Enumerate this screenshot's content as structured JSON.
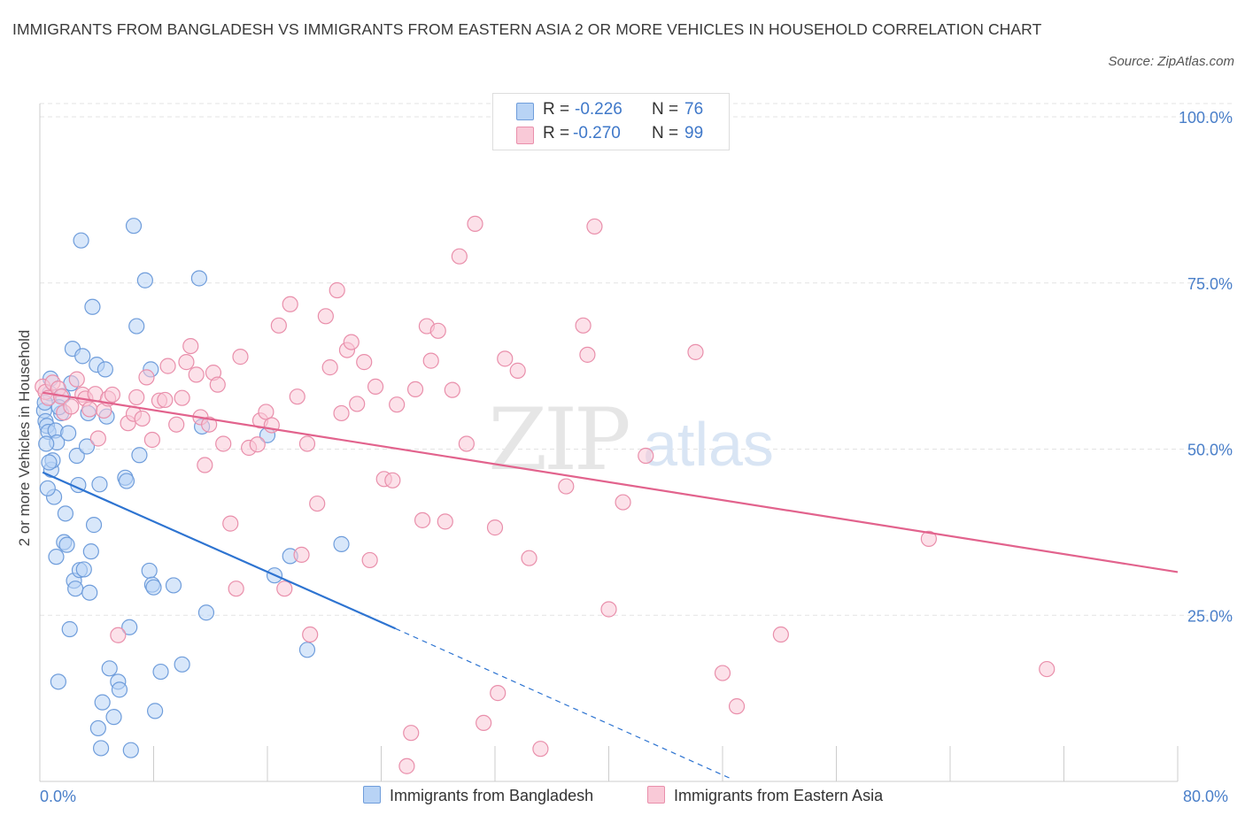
{
  "title": "IMMIGRANTS FROM BANGLADESH VS IMMIGRANTS FROM EASTERN ASIA 2 OR MORE VEHICLES IN HOUSEHOLD CORRELATION CHART",
  "source": "Source: ZipAtlas.com",
  "watermark": {
    "zip": "ZIP",
    "atlas": "atlas"
  },
  "colors": {
    "blue_fill": "#b8d3f5",
    "blue_stroke": "#6f9ddb",
    "blue_line": "#2e74d1",
    "pink_fill": "#f9c9d7",
    "pink_stroke": "#e98fab",
    "pink_line": "#e2638d",
    "tick_text": "#4a7fc9",
    "grid": "#e3e3e3"
  },
  "legend_top": {
    "rows": [
      {
        "r_label": "R =",
        "r_value": "-0.226",
        "n_label": "N =",
        "n_value": "76"
      },
      {
        "r_label": "R =",
        "r_value": "-0.270",
        "n_label": "N =",
        "n_value": "99"
      }
    ]
  },
  "chart_data": {
    "type": "scatter",
    "title": "IMMIGRANTS FROM BANGLADESH VS IMMIGRANTS FROM EASTERN ASIA 2 OR MORE VEHICLES IN HOUSEHOLD CORRELATION CHART",
    "xlabel": "",
    "ylabel": "2 or more Vehicles in Household",
    "xlim": [
      0,
      80
    ],
    "ylim": [
      0,
      100
    ],
    "x_tick_labels": [
      "0.0%",
      "80.0%"
    ],
    "y_ticks": [
      {
        "value": 100,
        "label": "100.0%"
      },
      {
        "value": 75,
        "label": "75.0%"
      },
      {
        "value": 50,
        "label": "50.0%"
      },
      {
        "value": 25,
        "label": "25.0%"
      }
    ],
    "grid": true,
    "legend_position": "bottom",
    "series": [
      {
        "name": "Immigrants from Bangladesh",
        "color": "#b8d3f5",
        "R": -0.226,
        "N": 76,
        "trend": {
          "x0": 0.2,
          "y0": 46.5,
          "x1": 25.0,
          "y1": 23.0,
          "dash_x1": 48.5,
          "dash_y1": 0.5
        },
        "points": [
          [
            0.3,
            55.8
          ],
          [
            0.4,
            54.2
          ],
          [
            0.5,
            53.5
          ],
          [
            0.6,
            52.6
          ],
          [
            0.7,
            58.4
          ],
          [
            0.8,
            46.9
          ],
          [
            0.9,
            48.3
          ],
          [
            1.0,
            42.8
          ],
          [
            1.1,
            52.8
          ],
          [
            1.2,
            51.0
          ],
          [
            1.3,
            15.0
          ],
          [
            1.5,
            55.4
          ],
          [
            1.6,
            58.0
          ],
          [
            1.7,
            36.0
          ],
          [
            1.8,
            40.3
          ],
          [
            1.9,
            35.6
          ],
          [
            2.0,
            52.4
          ],
          [
            2.1,
            22.9
          ],
          [
            2.2,
            59.9
          ],
          [
            2.3,
            65.1
          ],
          [
            2.4,
            30.2
          ],
          [
            2.5,
            29.0
          ],
          [
            2.6,
            49.0
          ],
          [
            2.7,
            44.6
          ],
          [
            2.8,
            31.8
          ],
          [
            2.9,
            81.4
          ],
          [
            3.0,
            64.0
          ],
          [
            3.1,
            31.9
          ],
          [
            3.3,
            50.4
          ],
          [
            3.4,
            55.4
          ],
          [
            3.5,
            28.4
          ],
          [
            3.6,
            34.6
          ],
          [
            3.7,
            71.4
          ],
          [
            3.8,
            38.6
          ],
          [
            4.0,
            62.7
          ],
          [
            4.1,
            8.0
          ],
          [
            4.2,
            44.7
          ],
          [
            4.3,
            5.0
          ],
          [
            4.4,
            11.9
          ],
          [
            4.6,
            62.0
          ],
          [
            4.7,
            54.9
          ],
          [
            4.9,
            17.0
          ],
          [
            5.2,
            9.7
          ],
          [
            5.5,
            15.0
          ],
          [
            5.6,
            13.8
          ],
          [
            6.0,
            45.7
          ],
          [
            6.1,
            45.2
          ],
          [
            6.3,
            23.2
          ],
          [
            6.4,
            4.7
          ],
          [
            6.6,
            83.6
          ],
          [
            6.8,
            68.5
          ],
          [
            7.0,
            49.1
          ],
          [
            7.4,
            75.4
          ],
          [
            7.7,
            31.7
          ],
          [
            7.8,
            62.0
          ],
          [
            7.9,
            29.6
          ],
          [
            8.0,
            29.2
          ],
          [
            8.1,
            10.6
          ],
          [
            8.5,
            16.5
          ],
          [
            9.4,
            29.5
          ],
          [
            10.0,
            17.6
          ],
          [
            11.2,
            75.7
          ],
          [
            11.4,
            53.4
          ],
          [
            11.7,
            25.4
          ],
          [
            16.0,
            52.1
          ],
          [
            16.5,
            31.0
          ],
          [
            17.6,
            33.9
          ],
          [
            18.8,
            19.8
          ],
          [
            21.2,
            35.7
          ],
          [
            0.35,
            57.0
          ],
          [
            0.45,
            50.8
          ],
          [
            0.55,
            44.1
          ],
          [
            0.65,
            48.0
          ],
          [
            0.75,
            60.6
          ],
          [
            1.15,
            33.8
          ],
          [
            1.35,
            56.3
          ]
        ]
      },
      {
        "name": "Immigrants from Eastern Asia",
        "color": "#f9c9d7",
        "R": -0.27,
        "N": 99,
        "trend": {
          "x0": 0.2,
          "y0": 58.5,
          "x1": 80.0,
          "y1": 31.5
        },
        "points": [
          [
            0.2,
            59.4
          ],
          [
            0.4,
            58.6
          ],
          [
            0.6,
            57.7
          ],
          [
            0.9,
            60.0
          ],
          [
            1.3,
            59.1
          ],
          [
            1.5,
            57.9
          ],
          [
            1.7,
            55.5
          ],
          [
            2.2,
            56.4
          ],
          [
            2.6,
            60.5
          ],
          [
            3.0,
            58.2
          ],
          [
            3.2,
            57.6
          ],
          [
            3.5,
            56.0
          ],
          [
            3.9,
            58.3
          ],
          [
            4.1,
            51.6
          ],
          [
            4.5,
            55.8
          ],
          [
            4.8,
            57.6
          ],
          [
            5.1,
            58.2
          ],
          [
            5.5,
            22.0
          ],
          [
            6.2,
            53.9
          ],
          [
            6.6,
            55.3
          ],
          [
            6.8,
            57.8
          ],
          [
            7.2,
            54.6
          ],
          [
            7.5,
            60.8
          ],
          [
            7.9,
            51.4
          ],
          [
            8.4,
            57.3
          ],
          [
            8.8,
            57.4
          ],
          [
            9.0,
            62.5
          ],
          [
            9.6,
            53.7
          ],
          [
            10.0,
            57.7
          ],
          [
            10.3,
            63.1
          ],
          [
            10.6,
            65.5
          ],
          [
            11.0,
            61.2
          ],
          [
            11.3,
            54.8
          ],
          [
            11.6,
            47.6
          ],
          [
            11.9,
            53.7
          ],
          [
            12.2,
            61.5
          ],
          [
            12.5,
            59.7
          ],
          [
            12.9,
            50.8
          ],
          [
            13.4,
            38.8
          ],
          [
            13.8,
            29.0
          ],
          [
            14.1,
            63.9
          ],
          [
            14.7,
            50.2
          ],
          [
            15.3,
            50.7
          ],
          [
            15.5,
            54.3
          ],
          [
            15.9,
            55.6
          ],
          [
            16.3,
            53.6
          ],
          [
            16.8,
            68.6
          ],
          [
            17.2,
            29.0
          ],
          [
            17.6,
            71.8
          ],
          [
            18.1,
            57.9
          ],
          [
            18.4,
            34.1
          ],
          [
            18.8,
            50.8
          ],
          [
            19.0,
            22.1
          ],
          [
            19.5,
            41.8
          ],
          [
            20.1,
            70.0
          ],
          [
            20.4,
            62.3
          ],
          [
            20.9,
            73.9
          ],
          [
            21.2,
            55.4
          ],
          [
            21.6,
            64.9
          ],
          [
            21.9,
            66.1
          ],
          [
            22.3,
            56.8
          ],
          [
            22.8,
            63.1
          ],
          [
            23.2,
            33.3
          ],
          [
            23.6,
            59.4
          ],
          [
            24.2,
            45.5
          ],
          [
            24.8,
            45.3
          ],
          [
            25.1,
            56.7
          ],
          [
            25.8,
            2.3
          ],
          [
            26.1,
            7.3
          ],
          [
            26.4,
            59.0
          ],
          [
            26.9,
            39.3
          ],
          [
            27.2,
            68.5
          ],
          [
            27.5,
            63.3
          ],
          [
            28.0,
            67.8
          ],
          [
            28.5,
            39.1
          ],
          [
            29.0,
            58.9
          ],
          [
            29.5,
            79.0
          ],
          [
            30.0,
            50.8
          ],
          [
            30.6,
            83.9
          ],
          [
            31.2,
            8.8
          ],
          [
            32.0,
            38.2
          ],
          [
            32.2,
            13.3
          ],
          [
            32.7,
            63.6
          ],
          [
            33.6,
            61.8
          ],
          [
            34.4,
            33.6
          ],
          [
            35.2,
            4.9
          ],
          [
            37.0,
            44.4
          ],
          [
            38.2,
            68.6
          ],
          [
            38.5,
            64.2
          ],
          [
            39.0,
            83.5
          ],
          [
            40.0,
            25.9
          ],
          [
            41.0,
            42.0
          ],
          [
            42.6,
            49.0
          ],
          [
            46.1,
            64.6
          ],
          [
            48.0,
            16.3
          ],
          [
            49.0,
            11.3
          ],
          [
            52.1,
            22.1
          ],
          [
            62.5,
            36.5
          ],
          [
            70.8,
            16.9
          ]
        ]
      }
    ]
  },
  "legend_bottom": [
    {
      "label": "Immigrants from Bangladesh"
    },
    {
      "label": "Immigrants from Eastern Asia"
    }
  ]
}
